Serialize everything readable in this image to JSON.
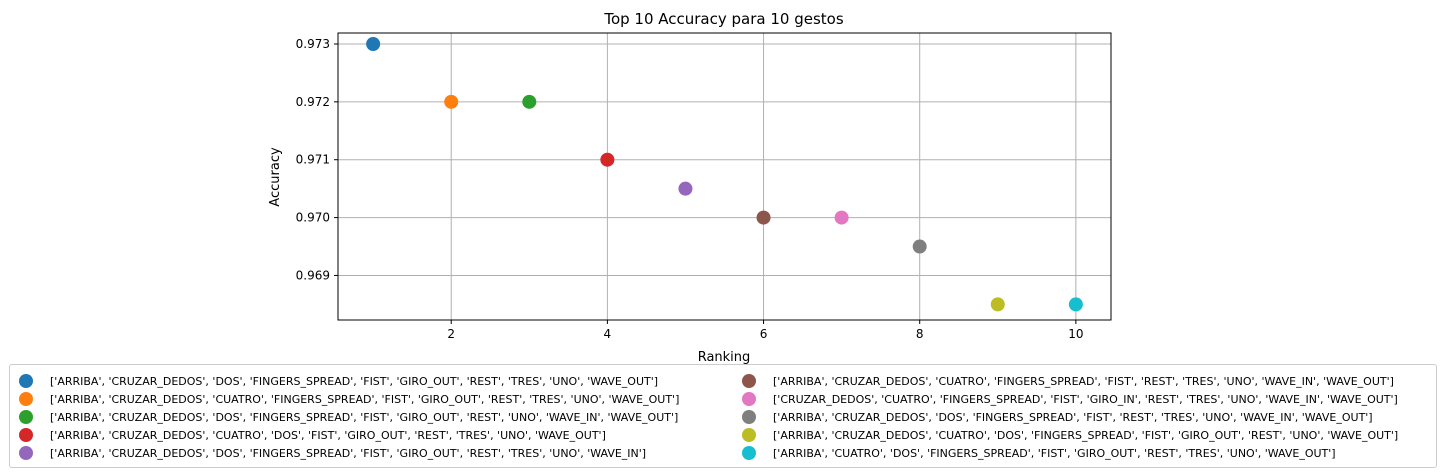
{
  "chart_data": {
    "type": "scatter",
    "title": "Top 10 Accuracy para 10 gestos",
    "xlabel": "Ranking",
    "ylabel": "Accuracy",
    "xlim": [
      0.55,
      10.45
    ],
    "ylim": [
      0.96823,
      0.97319
    ],
    "xticks": [
      2,
      4,
      6,
      8,
      10
    ],
    "yticks": [
      0.969,
      0.97,
      0.971,
      0.972,
      0.973
    ],
    "ytick_labels": [
      "0.969",
      "0.970",
      "0.971",
      "0.972",
      "0.973"
    ],
    "grid": true,
    "legend_position": "below",
    "series": [
      {
        "name": "['ARRIBA', 'CRUZAR_DEDOS', 'DOS', 'FINGERS_SPREAD', 'FIST', 'GIRO_OUT', 'REST', 'TRES', 'UNO', 'WAVE_OUT']",
        "x": 1,
        "y": 0.973,
        "color": "#1f77b4"
      },
      {
        "name": "['ARRIBA', 'CRUZAR_DEDOS', 'CUATRO', 'FINGERS_SPREAD', 'FIST', 'GIRO_OUT', 'REST', 'TRES', 'UNO', 'WAVE_OUT']",
        "x": 2,
        "y": 0.972,
        "color": "#ff7f0e"
      },
      {
        "name": "['ARRIBA', 'CRUZAR_DEDOS', 'DOS', 'FINGERS_SPREAD', 'FIST', 'GIRO_OUT', 'REST', 'UNO', 'WAVE_IN', 'WAVE_OUT']",
        "x": 3,
        "y": 0.972,
        "color": "#2ca02c"
      },
      {
        "name": "['ARRIBA', 'CRUZAR_DEDOS', 'CUATRO', 'DOS', 'FIST', 'GIRO_OUT', 'REST', 'TRES', 'UNO', 'WAVE_OUT']",
        "x": 4,
        "y": 0.971,
        "color": "#d62728"
      },
      {
        "name": "['ARRIBA', 'CRUZAR_DEDOS', 'DOS', 'FINGERS_SPREAD', 'FIST', 'GIRO_OUT', 'REST', 'TRES', 'UNO', 'WAVE_IN']",
        "x": 5,
        "y": 0.9705,
        "color": "#9467bd"
      },
      {
        "name": "['ARRIBA', 'CRUZAR_DEDOS', 'CUATRO', 'FINGERS_SPREAD', 'FIST', 'REST', 'TRES', 'UNO', 'WAVE_IN', 'WAVE_OUT']",
        "x": 6,
        "y": 0.97,
        "color": "#8c564b"
      },
      {
        "name": "['CRUZAR_DEDOS', 'CUATRO', 'FINGERS_SPREAD', 'FIST', 'GIRO_IN', 'REST', 'TRES', 'UNO', 'WAVE_IN', 'WAVE_OUT']",
        "x": 7,
        "y": 0.97,
        "color": "#e377c2"
      },
      {
        "name": "['ARRIBA', 'CRUZAR_DEDOS', 'DOS', 'FINGERS_SPREAD', 'FIST', 'REST', 'TRES', 'UNO', 'WAVE_IN', 'WAVE_OUT']",
        "x": 8,
        "y": 0.9695,
        "color": "#7f7f7f"
      },
      {
        "name": "['ARRIBA', 'CRUZAR_DEDOS', 'CUATRO', 'DOS', 'FINGERS_SPREAD', 'FIST', 'GIRO_OUT', 'REST', 'UNO', 'WAVE_OUT']",
        "x": 9,
        "y": 0.9685,
        "color": "#bcbd22"
      },
      {
        "name": "['ARRIBA', 'CUATRO', 'DOS', 'FINGERS_SPREAD', 'FIST', 'GIRO_OUT', 'REST', 'TRES', 'UNO', 'WAVE_OUT']",
        "x": 10,
        "y": 0.9685,
        "color": "#17becf"
      }
    ]
  }
}
